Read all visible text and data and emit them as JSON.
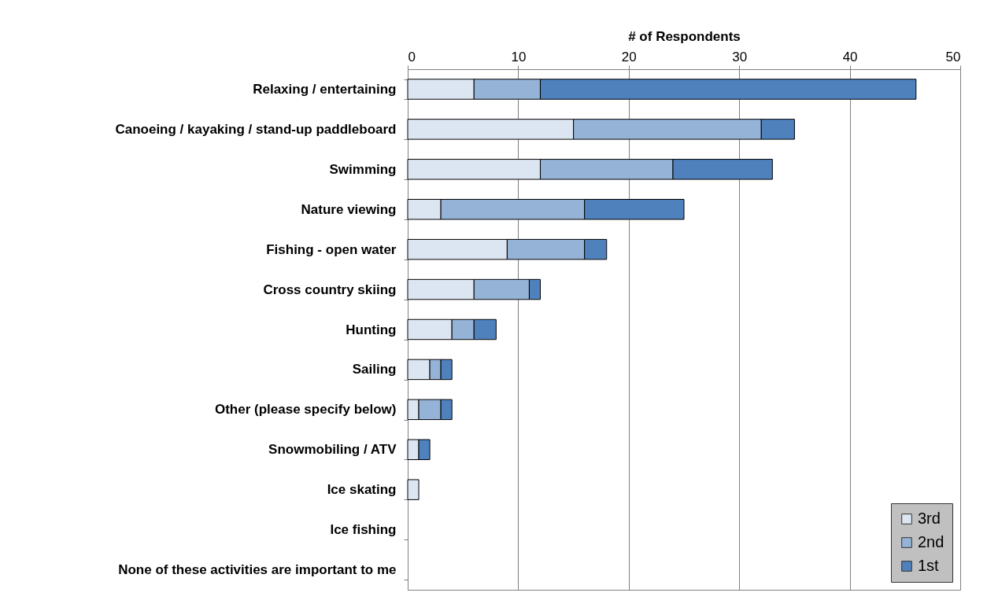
{
  "chart_data": {
    "type": "bar",
    "orientation": "horizontal",
    "stacked": true,
    "xlabel": "# of Respondents",
    "categories": [
      "Relaxing / entertaining",
      "Canoeing / kayaking / stand-up paddleboard",
      "Swimming",
      "Nature viewing",
      "Fishing - open water",
      "Cross country skiing",
      "Hunting",
      "Sailing",
      "Other (please specify below)",
      "Snowmobiling / ATV",
      "Ice skating",
      "Ice fishing",
      "None of these activities are important to me"
    ],
    "series": [
      {
        "name": "3rd",
        "color": "#dce6f2",
        "values": [
          6,
          15,
          12,
          3,
          9,
          6,
          4,
          2,
          1,
          1,
          1,
          0,
          0
        ]
      },
      {
        "name": "2nd",
        "color": "#95b3d7",
        "values": [
          6,
          17,
          12,
          13,
          7,
          5,
          2,
          1,
          2,
          0,
          0,
          0,
          0
        ]
      },
      {
        "name": "1st",
        "color": "#4f81bd",
        "values": [
          34,
          3,
          9,
          9,
          2,
          1,
          2,
          1,
          1,
          1,
          0,
          0,
          0
        ]
      }
    ],
    "xlim": [
      0,
      50
    ],
    "xticks": [
      0,
      10,
      20,
      30,
      40,
      50
    ],
    "grid": "x",
    "legend": "bottom right"
  }
}
